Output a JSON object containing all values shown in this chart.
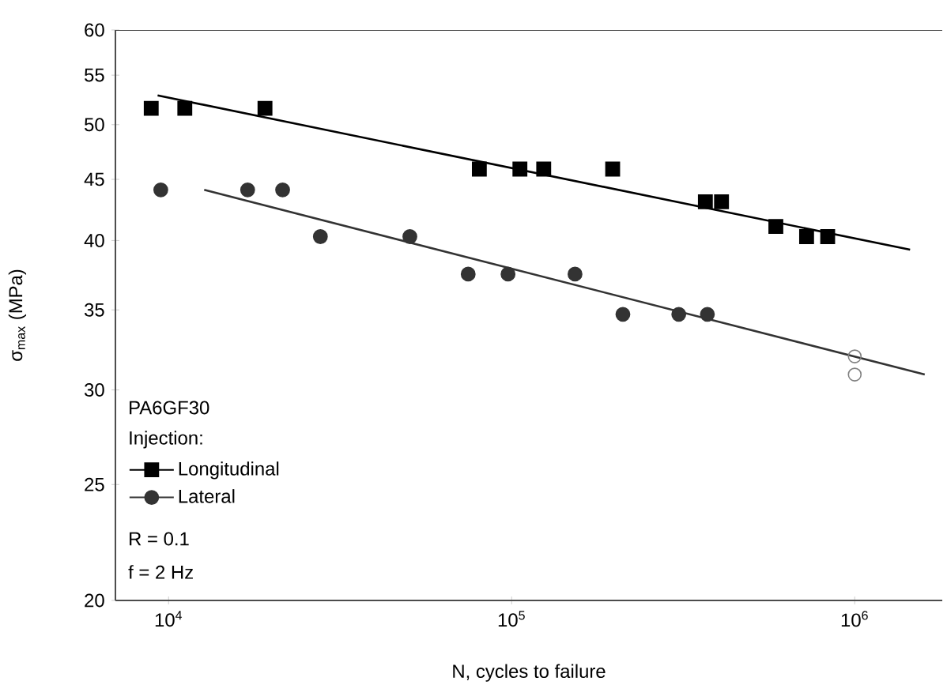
{
  "chart_data": {
    "type": "scatter",
    "xlabel": "N, cycles to failure",
    "ylabel": "σ$_{max}$ (MPa)",
    "log": "xy",
    "xlim": [
      7000,
      1800000
    ],
    "ylim": [
      20,
      60
    ],
    "xticks": [
      {
        "value": 10000,
        "label": "10$^{4}$"
      },
      {
        "value": 100000,
        "label": "10$^{5}$"
      },
      {
        "value": 1000000,
        "label": "10$^{6}$"
      }
    ],
    "yticks": [
      20,
      25,
      30,
      35,
      40,
      45,
      50,
      55,
      60
    ],
    "grid": false,
    "legend": "bottom left",
    "annotations": [
      "PA6GF30",
      "Injection:",
      "R = 0.1",
      "f = 2 Hz"
    ],
    "series": [
      {
        "name": "Longitudinal",
        "marker": "square",
        "color": "#000000",
        "x": [
          8900,
          11150,
          19100,
          80500,
          105700,
          124000,
          197000,
          367000,
          409000,
          589000,
          724000,
          834000
        ],
        "values": [
          51.6,
          51.6,
          51.6,
          45.9,
          45.9,
          45.9,
          45.9,
          43.1,
          43.1,
          41.1,
          40.3,
          40.3
        ]
      },
      {
        "name": "Lateral",
        "marker": "circle",
        "color": "#333333",
        "x": [
          9490,
          17000,
          21500,
          27700,
          50500,
          74700,
          97600,
          153000,
          211000,
          307000,
          372000
        ],
        "values": [
          44.1,
          44.1,
          44.1,
          40.3,
          40.3,
          37.5,
          37.5,
          37.5,
          34.7,
          34.7,
          34.7
        ]
      },
      {
        "marker": "circle",
        "color": "#808080",
        "x": [
          1000000,
          1000000
        ],
        "values": [
          32.0,
          30.9
        ]
      },
      {
        "type": "line",
        "color": "#000000",
        "x": [
          9290,
          1450000
        ],
        "values": [
          52.9,
          39.3
        ]
      },
      {
        "type": "line",
        "color": "#333333",
        "x": [
          12700,
          1600000
        ],
        "values": [
          44.1,
          30.9
        ]
      }
    ]
  }
}
